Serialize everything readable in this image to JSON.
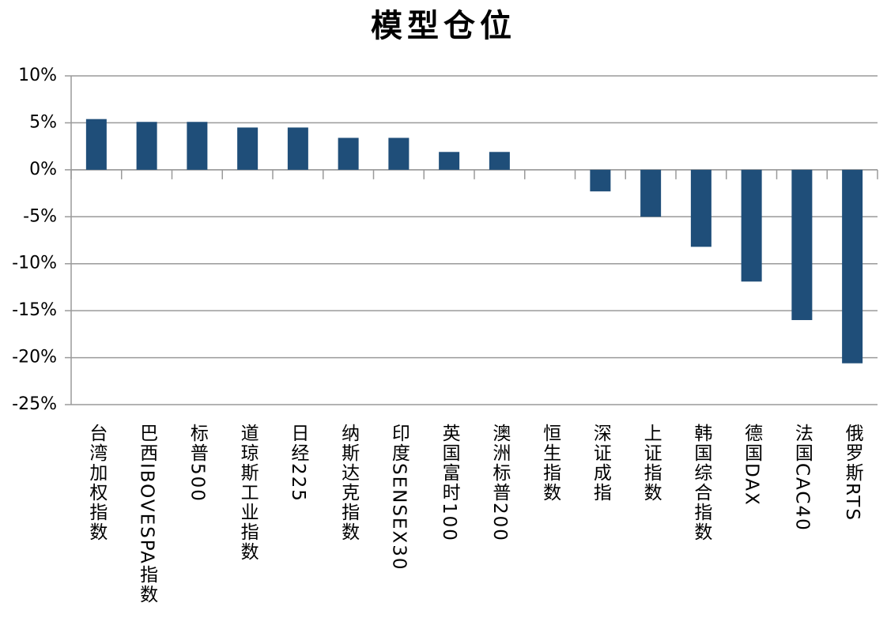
{
  "chart_data": {
    "type": "bar",
    "title": "模型仓位",
    "categories": [
      "台湾加权指数",
      "巴西IBOVESPA指数",
      "标普500",
      "道琼斯工业指数",
      "日经225",
      "纳斯达克指数",
      "印度SENSEX30",
      "英国富时100",
      "澳洲标普200",
      "恒生指数",
      "深证成指",
      "上证指数",
      "韩国综合指数",
      "德国DAX",
      "法国CAC40",
      "俄罗斯RTS"
    ],
    "values": [
      5.4,
      5.1,
      5.1,
      4.5,
      4.5,
      3.4,
      3.4,
      1.9,
      1.9,
      0,
      -2.3,
      -5.0,
      -8.2,
      -11.9,
      -16.0,
      -20.6
    ],
    "color": "#1f4e79",
    "ylim": [
      -25,
      10
    ],
    "yticks": [
      {
        "value": -25,
        "label": "-25%"
      },
      {
        "value": -20,
        "label": "-20%"
      },
      {
        "value": -15,
        "label": "-15%"
      },
      {
        "value": -10,
        "label": "-10%"
      },
      {
        "value": -5,
        "label": "-5%"
      },
      {
        "value": 0,
        "label": "0%"
      },
      {
        "value": 5,
        "label": "5%"
      },
      {
        "value": 10,
        "label": "10%"
      }
    ],
    "grid": true
  }
}
